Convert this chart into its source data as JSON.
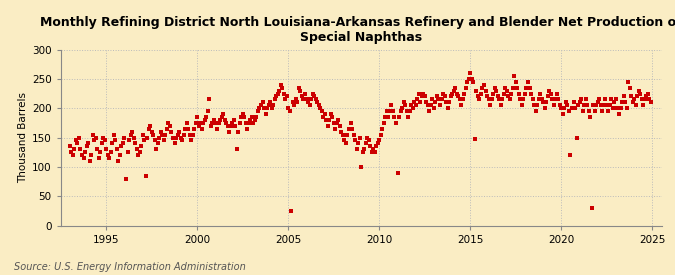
{
  "title": "Monthly Refining District North Louisiana-Arkansas Refinery and Blender Net Production of\nSpecial Naphthas",
  "ylabel": "Thousand Barrels",
  "source": "Source: U.S. Energy Information Administration",
  "xlim": [
    1992.5,
    2025.5
  ],
  "ylim": [
    0,
    300
  ],
  "yticks": [
    0,
    50,
    100,
    150,
    200,
    250,
    300
  ],
  "xticks": [
    1995,
    2000,
    2005,
    2010,
    2015,
    2020,
    2025
  ],
  "marker_color": "#cc0000",
  "background_color": "#faedc4",
  "plot_bg_color": "#faedc4",
  "marker": "s",
  "marker_size": 3.5,
  "grid_color": "#bbbbbb",
  "grid_style": ":",
  "data_points": [
    [
      1993.0,
      135
    ],
    [
      1993.083,
      125
    ],
    [
      1993.167,
      120
    ],
    [
      1993.25,
      130
    ],
    [
      1993.333,
      145
    ],
    [
      1993.417,
      140
    ],
    [
      1993.5,
      150
    ],
    [
      1993.583,
      130
    ],
    [
      1993.667,
      120
    ],
    [
      1993.75,
      115
    ],
    [
      1993.833,
      125
    ],
    [
      1993.917,
      135
    ],
    [
      1994.0,
      140
    ],
    [
      1994.083,
      110
    ],
    [
      1994.167,
      120
    ],
    [
      1994.25,
      155
    ],
    [
      1994.333,
      145
    ],
    [
      1994.417,
      150
    ],
    [
      1994.5,
      130
    ],
    [
      1994.583,
      115
    ],
    [
      1994.667,
      125
    ],
    [
      1994.75,
      140
    ],
    [
      1994.833,
      150
    ],
    [
      1994.917,
      145
    ],
    [
      1995.0,
      130
    ],
    [
      1995.083,
      120
    ],
    [
      1995.167,
      115
    ],
    [
      1995.25,
      125
    ],
    [
      1995.333,
      140
    ],
    [
      1995.417,
      155
    ],
    [
      1995.5,
      145
    ],
    [
      1995.583,
      130
    ],
    [
      1995.667,
      110
    ],
    [
      1995.75,
      120
    ],
    [
      1995.833,
      135
    ],
    [
      1995.917,
      140
    ],
    [
      1996.0,
      150
    ],
    [
      1996.083,
      80
    ],
    [
      1996.167,
      125
    ],
    [
      1996.25,
      145
    ],
    [
      1996.333,
      155
    ],
    [
      1996.417,
      160
    ],
    [
      1996.5,
      150
    ],
    [
      1996.583,
      140
    ],
    [
      1996.667,
      130
    ],
    [
      1996.75,
      120
    ],
    [
      1996.833,
      125
    ],
    [
      1996.917,
      135
    ],
    [
      1997.0,
      155
    ],
    [
      1997.083,
      145
    ],
    [
      1997.167,
      85
    ],
    [
      1997.25,
      150
    ],
    [
      1997.333,
      165
    ],
    [
      1997.417,
      170
    ],
    [
      1997.5,
      160
    ],
    [
      1997.583,
      155
    ],
    [
      1997.667,
      145
    ],
    [
      1997.75,
      130
    ],
    [
      1997.833,
      140
    ],
    [
      1997.917,
      150
    ],
    [
      1998.0,
      160
    ],
    [
      1998.083,
      155
    ],
    [
      1998.167,
      145
    ],
    [
      1998.25,
      155
    ],
    [
      1998.333,
      165
    ],
    [
      1998.417,
      175
    ],
    [
      1998.5,
      170
    ],
    [
      1998.583,
      160
    ],
    [
      1998.667,
      150
    ],
    [
      1998.75,
      140
    ],
    [
      1998.833,
      150
    ],
    [
      1998.917,
      155
    ],
    [
      1999.0,
      160
    ],
    [
      1999.083,
      150
    ],
    [
      1999.167,
      145
    ],
    [
      1999.25,
      155
    ],
    [
      1999.333,
      165
    ],
    [
      1999.417,
      175
    ],
    [
      1999.5,
      165
    ],
    [
      1999.583,
      155
    ],
    [
      1999.667,
      145
    ],
    [
      1999.75,
      155
    ],
    [
      1999.833,
      165
    ],
    [
      1999.917,
      175
    ],
    [
      2000.0,
      185
    ],
    [
      2000.083,
      170
    ],
    [
      2000.167,
      175
    ],
    [
      2000.25,
      165
    ],
    [
      2000.333,
      175
    ],
    [
      2000.417,
      180
    ],
    [
      2000.5,
      185
    ],
    [
      2000.583,
      195
    ],
    [
      2000.667,
      215
    ],
    [
      2000.75,
      170
    ],
    [
      2000.833,
      175
    ],
    [
      2000.917,
      180
    ],
    [
      2001.0,
      175
    ],
    [
      2001.083,
      165
    ],
    [
      2001.167,
      175
    ],
    [
      2001.25,
      180
    ],
    [
      2001.333,
      185
    ],
    [
      2001.417,
      190
    ],
    [
      2001.5,
      180
    ],
    [
      2001.583,
      175
    ],
    [
      2001.667,
      170
    ],
    [
      2001.75,
      160
    ],
    [
      2001.833,
      170
    ],
    [
      2001.917,
      175
    ],
    [
      2002.0,
      180
    ],
    [
      2002.083,
      170
    ],
    [
      2002.167,
      130
    ],
    [
      2002.25,
      160
    ],
    [
      2002.333,
      175
    ],
    [
      2002.417,
      185
    ],
    [
      2002.5,
      190
    ],
    [
      2002.583,
      185
    ],
    [
      2002.667,
      175
    ],
    [
      2002.75,
      165
    ],
    [
      2002.833,
      175
    ],
    [
      2002.917,
      180
    ],
    [
      2003.0,
      185
    ],
    [
      2003.083,
      175
    ],
    [
      2003.167,
      180
    ],
    [
      2003.25,
      185
    ],
    [
      2003.333,
      195
    ],
    [
      2003.417,
      200
    ],
    [
      2003.5,
      205
    ],
    [
      2003.583,
      210
    ],
    [
      2003.667,
      200
    ],
    [
      2003.75,
      190
    ],
    [
      2003.833,
      200
    ],
    [
      2003.917,
      205
    ],
    [
      2004.0,
      210
    ],
    [
      2004.083,
      200
    ],
    [
      2004.167,
      205
    ],
    [
      2004.25,
      215
    ],
    [
      2004.333,
      220
    ],
    [
      2004.417,
      225
    ],
    [
      2004.5,
      230
    ],
    [
      2004.583,
      240
    ],
    [
      2004.667,
      235
    ],
    [
      2004.75,
      225
    ],
    [
      2004.833,
      215
    ],
    [
      2004.917,
      220
    ],
    [
      2005.0,
      200
    ],
    [
      2005.083,
      195
    ],
    [
      2005.167,
      25
    ],
    [
      2005.25,
      210
    ],
    [
      2005.333,
      205
    ],
    [
      2005.417,
      215
    ],
    [
      2005.5,
      210
    ],
    [
      2005.583,
      235
    ],
    [
      2005.667,
      230
    ],
    [
      2005.75,
      220
    ],
    [
      2005.833,
      215
    ],
    [
      2005.917,
      225
    ],
    [
      2006.0,
      215
    ],
    [
      2006.083,
      210
    ],
    [
      2006.167,
      205
    ],
    [
      2006.25,
      215
    ],
    [
      2006.333,
      225
    ],
    [
      2006.417,
      220
    ],
    [
      2006.5,
      215
    ],
    [
      2006.583,
      210
    ],
    [
      2006.667,
      205
    ],
    [
      2006.75,
      200
    ],
    [
      2006.833,
      195
    ],
    [
      2006.917,
      185
    ],
    [
      2007.0,
      190
    ],
    [
      2007.083,
      180
    ],
    [
      2007.167,
      170
    ],
    [
      2007.25,
      180
    ],
    [
      2007.333,
      190
    ],
    [
      2007.417,
      185
    ],
    [
      2007.5,
      175
    ],
    [
      2007.583,
      165
    ],
    [
      2007.667,
      175
    ],
    [
      2007.75,
      180
    ],
    [
      2007.833,
      170
    ],
    [
      2007.917,
      160
    ],
    [
      2008.0,
      155
    ],
    [
      2008.083,
      145
    ],
    [
      2008.167,
      140
    ],
    [
      2008.25,
      155
    ],
    [
      2008.333,
      165
    ],
    [
      2008.417,
      175
    ],
    [
      2008.5,
      165
    ],
    [
      2008.583,
      155
    ],
    [
      2008.667,
      145
    ],
    [
      2008.75,
      130
    ],
    [
      2008.833,
      140
    ],
    [
      2008.917,
      150
    ],
    [
      2009.0,
      100
    ],
    [
      2009.083,
      125
    ],
    [
      2009.167,
      130
    ],
    [
      2009.25,
      140
    ],
    [
      2009.333,
      150
    ],
    [
      2009.417,
      145
    ],
    [
      2009.5,
      135
    ],
    [
      2009.583,
      125
    ],
    [
      2009.667,
      130
    ],
    [
      2009.75,
      125
    ],
    [
      2009.833,
      135
    ],
    [
      2009.917,
      140
    ],
    [
      2010.0,
      145
    ],
    [
      2010.083,
      155
    ],
    [
      2010.167,
      165
    ],
    [
      2010.25,
      175
    ],
    [
      2010.333,
      185
    ],
    [
      2010.417,
      195
    ],
    [
      2010.5,
      185
    ],
    [
      2010.583,
      195
    ],
    [
      2010.667,
      205
    ],
    [
      2010.75,
      195
    ],
    [
      2010.833,
      185
    ],
    [
      2010.917,
      175
    ],
    [
      2011.0,
      90
    ],
    [
      2011.083,
      185
    ],
    [
      2011.167,
      195
    ],
    [
      2011.25,
      200
    ],
    [
      2011.333,
      210
    ],
    [
      2011.417,
      205
    ],
    [
      2011.5,
      195
    ],
    [
      2011.583,
      185
    ],
    [
      2011.667,
      195
    ],
    [
      2011.75,
      205
    ],
    [
      2011.833,
      200
    ],
    [
      2011.917,
      210
    ],
    [
      2012.0,
      205
    ],
    [
      2012.083,
      215
    ],
    [
      2012.167,
      225
    ],
    [
      2012.25,
      210
    ],
    [
      2012.333,
      220
    ],
    [
      2012.417,
      225
    ],
    [
      2012.5,
      220
    ],
    [
      2012.583,
      210
    ],
    [
      2012.667,
      205
    ],
    [
      2012.75,
      195
    ],
    [
      2012.833,
      205
    ],
    [
      2012.917,
      215
    ],
    [
      2013.0,
      200
    ],
    [
      2013.083,
      210
    ],
    [
      2013.167,
      220
    ],
    [
      2013.25,
      215
    ],
    [
      2013.333,
      205
    ],
    [
      2013.417,
      215
    ],
    [
      2013.5,
      225
    ],
    [
      2013.583,
      220
    ],
    [
      2013.667,
      210
    ],
    [
      2013.75,
      200
    ],
    [
      2013.833,
      210
    ],
    [
      2013.917,
      220
    ],
    [
      2014.0,
      225
    ],
    [
      2014.083,
      230
    ],
    [
      2014.167,
      235
    ],
    [
      2014.25,
      225
    ],
    [
      2014.333,
      220
    ],
    [
      2014.417,
      215
    ],
    [
      2014.5,
      205
    ],
    [
      2014.583,
      215
    ],
    [
      2014.667,
      225
    ],
    [
      2014.75,
      235
    ],
    [
      2014.833,
      245
    ],
    [
      2014.917,
      250
    ],
    [
      2015.0,
      260
    ],
    [
      2015.083,
      250
    ],
    [
      2015.167,
      245
    ],
    [
      2015.25,
      148
    ],
    [
      2015.333,
      230
    ],
    [
      2015.417,
      220
    ],
    [
      2015.5,
      215
    ],
    [
      2015.583,
      225
    ],
    [
      2015.667,
      235
    ],
    [
      2015.75,
      240
    ],
    [
      2015.833,
      230
    ],
    [
      2015.917,
      220
    ],
    [
      2016.0,
      215
    ],
    [
      2016.083,
      205
    ],
    [
      2016.167,
      215
    ],
    [
      2016.25,
      225
    ],
    [
      2016.333,
      235
    ],
    [
      2016.417,
      230
    ],
    [
      2016.5,
      220
    ],
    [
      2016.583,
      215
    ],
    [
      2016.667,
      205
    ],
    [
      2016.75,
      215
    ],
    [
      2016.833,
      225
    ],
    [
      2016.917,
      235
    ],
    [
      2017.0,
      230
    ],
    [
      2017.083,
      220
    ],
    [
      2017.167,
      215
    ],
    [
      2017.25,
      225
    ],
    [
      2017.333,
      235
    ],
    [
      2017.417,
      255
    ],
    [
      2017.5,
      245
    ],
    [
      2017.583,
      235
    ],
    [
      2017.667,
      225
    ],
    [
      2017.75,
      215
    ],
    [
      2017.833,
      205
    ],
    [
      2017.917,
      215
    ],
    [
      2018.0,
      225
    ],
    [
      2018.083,
      235
    ],
    [
      2018.167,
      245
    ],
    [
      2018.25,
      235
    ],
    [
      2018.333,
      225
    ],
    [
      2018.417,
      215
    ],
    [
      2018.5,
      205
    ],
    [
      2018.583,
      195
    ],
    [
      2018.667,
      205
    ],
    [
      2018.75,
      215
    ],
    [
      2018.833,
      225
    ],
    [
      2018.917,
      215
    ],
    [
      2019.0,
      210
    ],
    [
      2019.083,
      200
    ],
    [
      2019.167,
      210
    ],
    [
      2019.25,
      220
    ],
    [
      2019.333,
      230
    ],
    [
      2019.417,
      225
    ],
    [
      2019.5,
      215
    ],
    [
      2019.583,
      205
    ],
    [
      2019.667,
      215
    ],
    [
      2019.75,
      225
    ],
    [
      2019.833,
      215
    ],
    [
      2019.917,
      205
    ],
    [
      2020.0,
      200
    ],
    [
      2020.083,
      190
    ],
    [
      2020.167,
      200
    ],
    [
      2020.25,
      210
    ],
    [
      2020.333,
      205
    ],
    [
      2020.417,
      195
    ],
    [
      2020.5,
      120
    ],
    [
      2020.583,
      200
    ],
    [
      2020.667,
      210
    ],
    [
      2020.75,
      200
    ],
    [
      2020.833,
      150
    ],
    [
      2020.917,
      205
    ],
    [
      2021.0,
      210
    ],
    [
      2021.083,
      215
    ],
    [
      2021.167,
      195
    ],
    [
      2021.25,
      205
    ],
    [
      2021.333,
      215
    ],
    [
      2021.417,
      205
    ],
    [
      2021.5,
      195
    ],
    [
      2021.583,
      185
    ],
    [
      2021.667,
      30
    ],
    [
      2021.75,
      205
    ],
    [
      2021.833,
      195
    ],
    [
      2021.917,
      205
    ],
    [
      2022.0,
      210
    ],
    [
      2022.083,
      215
    ],
    [
      2022.167,
      205
    ],
    [
      2022.25,
      195
    ],
    [
      2022.333,
      205
    ],
    [
      2022.417,
      215
    ],
    [
      2022.5,
      205
    ],
    [
      2022.583,
      195
    ],
    [
      2022.667,
      205
    ],
    [
      2022.75,
      215
    ],
    [
      2022.833,
      200
    ],
    [
      2022.917,
      210
    ],
    [
      2023.0,
      215
    ],
    [
      2023.083,
      200
    ],
    [
      2023.167,
      190
    ],
    [
      2023.25,
      200
    ],
    [
      2023.333,
      210
    ],
    [
      2023.417,
      220
    ],
    [
      2023.5,
      210
    ],
    [
      2023.583,
      200
    ],
    [
      2023.667,
      245
    ],
    [
      2023.75,
      235
    ],
    [
      2023.833,
      220
    ],
    [
      2023.917,
      210
    ],
    [
      2024.0,
      215
    ],
    [
      2024.083,
      205
    ],
    [
      2024.167,
      220
    ],
    [
      2024.25,
      230
    ],
    [
      2024.333,
      225
    ],
    [
      2024.417,
      215
    ],
    [
      2024.5,
      205
    ],
    [
      2024.583,
      215
    ],
    [
      2024.667,
      220
    ],
    [
      2024.75,
      225
    ],
    [
      2024.833,
      215
    ],
    [
      2024.917,
      210
    ]
  ]
}
